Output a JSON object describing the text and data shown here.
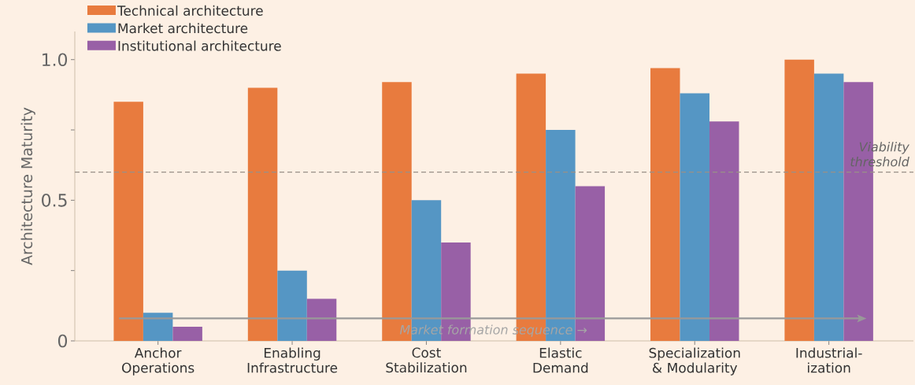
{
  "chart_data": {
    "type": "bar",
    "categories": [
      "Anchor Operations",
      "Enabling Infrastructure",
      "Cost Stabilization",
      "Elastic Demand",
      "Specialization & Modularity",
      "Industrial-ization"
    ],
    "series": [
      {
        "name": "Technical architecture",
        "color": "#e87b3e",
        "values": [
          0.85,
          0.9,
          0.92,
          0.95,
          0.97,
          1.0
        ]
      },
      {
        "name": "Market architecture",
        "color": "#5596c4",
        "values": [
          0.1,
          0.25,
          0.5,
          0.75,
          0.88,
          0.95
        ]
      },
      {
        "name": "Institutional architecture",
        "color": "#9860a6",
        "values": [
          0.05,
          0.15,
          0.35,
          0.55,
          0.78,
          0.92
        ]
      }
    ],
    "ylabel": "Architecture Maturity",
    "ylim": [
      0,
      1.1
    ],
    "yticks": [
      {
        "value": 0,
        "label": "0"
      },
      {
        "value": 0.25,
        "label": null
      },
      {
        "value": 0.5,
        "label": "0.5"
      },
      {
        "value": 0.75,
        "label": null
      },
      {
        "value": 1.0,
        "label": "1.0"
      }
    ],
    "ref_lines": [
      {
        "axis": "y",
        "value": 0.6,
        "label": "Viability threshold",
        "color": "#999088",
        "line_style": "dashed"
      }
    ],
    "annotations": [
      "Market formation sequence →"
    ],
    "legend": "top left"
  }
}
